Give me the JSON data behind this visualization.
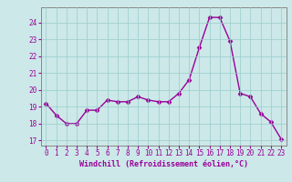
{
  "x": [
    0,
    1,
    2,
    3,
    4,
    5,
    6,
    7,
    8,
    9,
    10,
    11,
    12,
    13,
    14,
    15,
    16,
    17,
    18,
    19,
    20,
    21,
    22,
    23
  ],
  "y": [
    19.2,
    18.5,
    18.0,
    18.0,
    18.8,
    18.8,
    19.4,
    19.3,
    19.3,
    19.6,
    19.4,
    19.3,
    19.3,
    19.8,
    20.6,
    22.5,
    24.3,
    24.3,
    22.9,
    19.8,
    19.6,
    18.6,
    18.1,
    17.1
  ],
  "line_color": "#990099",
  "marker_color": "#990099",
  "bg_color": "#cce8e8",
  "grid_color": "#99cccc",
  "ylabel_ticks": [
    17,
    18,
    19,
    20,
    21,
    22,
    23,
    24
  ],
  "xlabel": "Windchill (Refroidissement éolien,°C)",
  "xlim": [
    -0.5,
    23.5
  ],
  "ylim": [
    16.7,
    24.9
  ],
  "xlabel_color": "#990099",
  "tick_color": "#990099",
  "spine_color": "#888888",
  "font_family": "monospace",
  "tick_fontsize": 5.5,
  "xlabel_fontsize": 6.0,
  "linewidth": 1.0,
  "markersize": 2.5
}
